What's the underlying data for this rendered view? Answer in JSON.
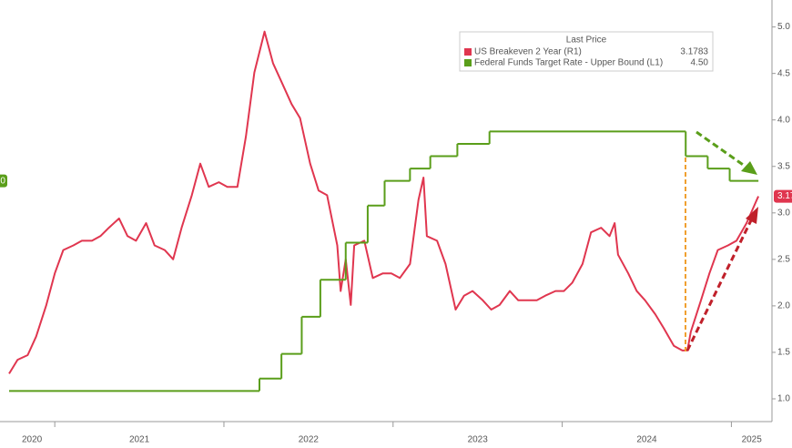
{
  "chart_data": {
    "type": "line",
    "legend_title": "Last Price",
    "xlim": [
      2020.73,
      2025.24
    ],
    "xticks": [
      {
        "value": 2020,
        "label": "2020"
      },
      {
        "value": 2021,
        "label": "2021"
      },
      {
        "value": 2022,
        "label": "2022"
      },
      {
        "value": 2023,
        "label": "2023"
      },
      {
        "value": 2024,
        "label": "2024"
      },
      {
        "value": 2025,
        "label": "2025"
      }
    ],
    "ylim": [
      -0.37,
      8.16
    ],
    "y2lim": [
      0.755,
      5.29
    ],
    "y2ticks": [
      {
        "value": 1,
        "label": "1.0"
      },
      1.5,
      {
        "value": 2,
        "label": "2.0"
      },
      2.5,
      {
        "value": 3,
        "label": "3.0"
      },
      3.5,
      {
        "value": 4,
        "label": "4.0"
      },
      4.5,
      {
        "value": 5,
        "label": "5.0"
      }
    ],
    "series": [
      {
        "name": "US Breakeven 2 Year  (R1)",
        "color": "#e0364f",
        "axis": "y2",
        "last_price": "3.1783",
        "x": [
          2020.73,
          2020.78,
          2020.84,
          2020.89,
          2020.95,
          2021.0,
          2021.05,
          2021.11,
          2021.16,
          2021.22,
          2021.27,
          2021.32,
          2021.38,
          2021.43,
          2021.48,
          2021.54,
          2021.59,
          2021.65,
          2021.7,
          2021.75,
          2021.81,
          2021.86,
          2021.91,
          2021.97,
          2022.02,
          2022.08,
          2022.13,
          2022.18,
          2022.24,
          2022.29,
          2022.34,
          2022.4,
          2022.45,
          2022.51,
          2022.56,
          2022.61,
          2022.67,
          2022.69,
          2022.72,
          2022.75,
          2022.77,
          2022.83,
          2022.88,
          2022.94,
          2022.99,
          2023.04,
          2023.1,
          2023.15,
          2023.18,
          2023.2,
          2023.26,
          2023.31,
          2023.37,
          2023.42,
          2023.47,
          2023.53,
          2023.58,
          2023.63,
          2023.69,
          2023.74,
          2023.8,
          2023.85,
          2023.9,
          2023.96,
          2024.01,
          2024.06,
          2024.12,
          2024.17,
          2024.23,
          2024.28,
          2024.31,
          2024.33,
          2024.39,
          2024.44,
          2024.49,
          2024.55,
          2024.6,
          2024.66,
          2024.71,
          2024.74,
          2024.76,
          2024.82,
          2024.87,
          2024.92,
          2024.98,
          2025.03,
          2025.09,
          2025.15,
          2025.16
        ],
        "values": [
          1.27,
          1.42,
          1.47,
          1.67,
          2.01,
          2.35,
          2.6,
          2.65,
          2.7,
          2.7,
          2.75,
          2.84,
          2.94,
          2.75,
          2.7,
          2.89,
          2.65,
          2.6,
          2.5,
          2.84,
          3.19,
          3.53,
          3.28,
          3.33,
          3.28,
          3.28,
          3.82,
          4.51,
          4.95,
          4.61,
          4.41,
          4.17,
          4.02,
          3.53,
          3.24,
          3.19,
          2.65,
          2.16,
          2.5,
          2.01,
          2.65,
          2.7,
          2.3,
          2.35,
          2.35,
          2.3,
          2.45,
          3.14,
          3.38,
          2.75,
          2.7,
          2.45,
          1.96,
          2.11,
          2.16,
          2.06,
          1.96,
          2.01,
          2.16,
          2.06,
          2.06,
          2.06,
          2.11,
          2.16,
          2.16,
          2.25,
          2.45,
          2.79,
          2.84,
          2.75,
          2.89,
          2.55,
          2.35,
          2.16,
          2.06,
          1.91,
          1.76,
          1.57,
          1.52,
          1.52,
          1.72,
          2.06,
          2.35,
          2.6,
          2.65,
          2.7,
          2.89,
          3.14,
          3.1783
        ]
      },
      {
        "name": "Federal Funds Target Rate - Upper Bound  (L1)",
        "color": "#5a9e1a",
        "axis": "y",
        "step": true,
        "last_price": "4.50",
        "x": [
          2020.73,
          2022.21,
          2022.34,
          2022.46,
          2022.57,
          2022.72,
          2022.85,
          2022.95,
          2023.1,
          2023.22,
          2023.38,
          2023.57,
          2024.73,
          2024.86,
          2024.99,
          2025.16
        ],
        "values": [
          0.25,
          0.5,
          1.0,
          1.75,
          2.5,
          3.25,
          4.0,
          4.5,
          4.75,
          5.0,
          5.25,
          5.5,
          5.0,
          4.75,
          4.5,
          4.5
        ]
      }
    ]
  }
}
